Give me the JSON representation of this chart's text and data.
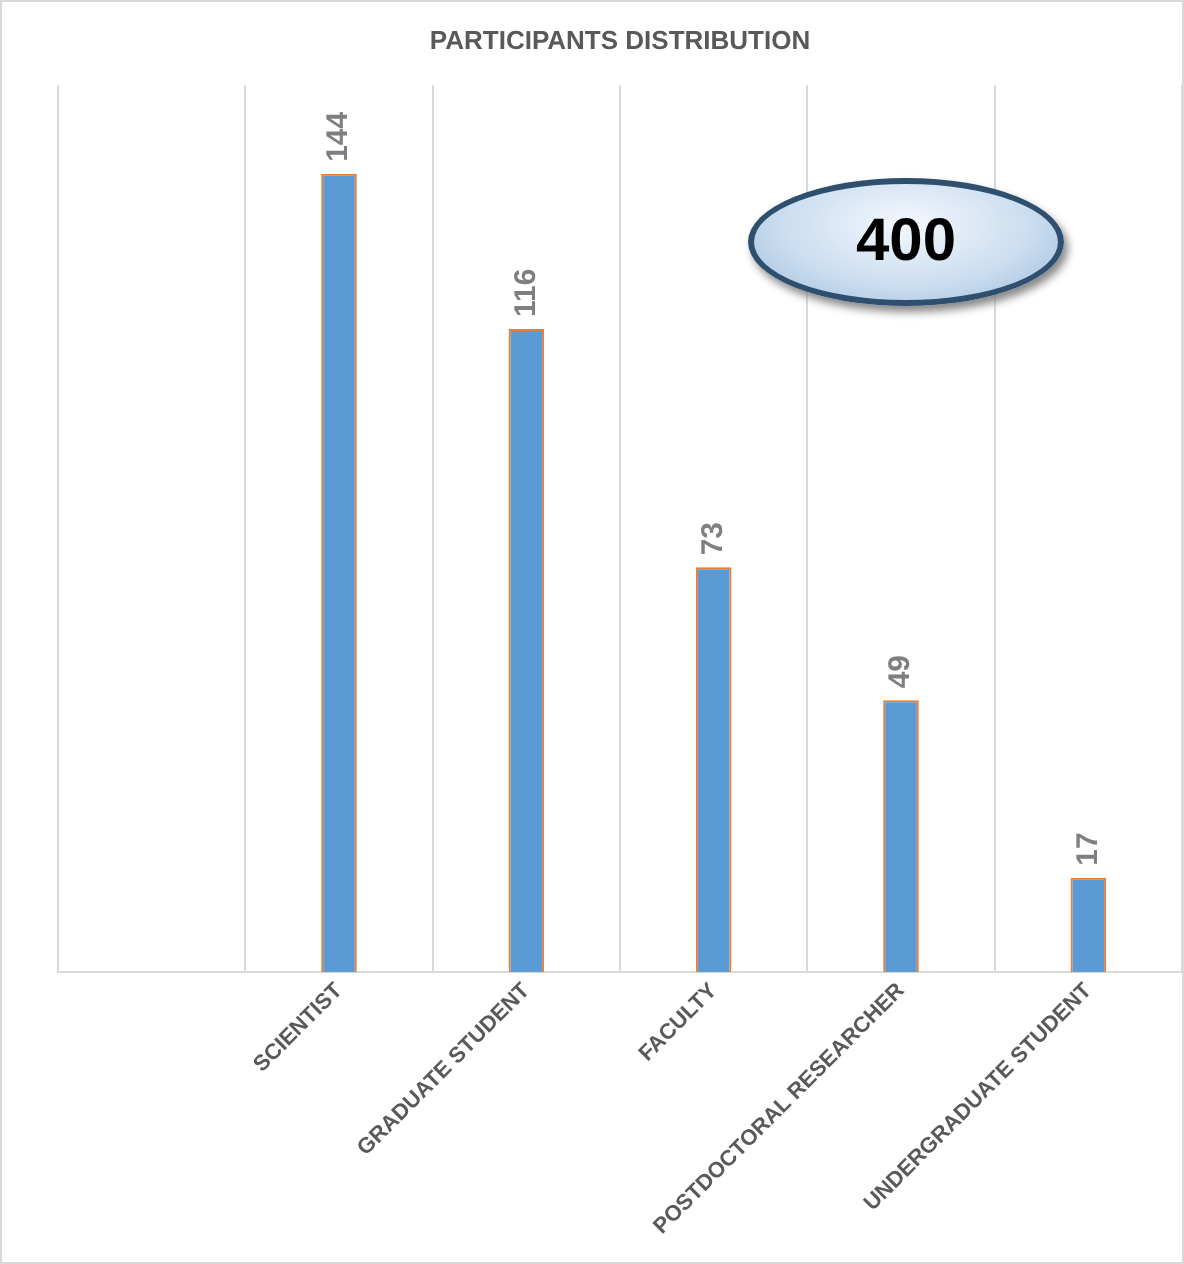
{
  "chart_data": {
    "type": "bar",
    "title": "PARTICIPANTS DISTRIBUTION",
    "categories": [
      null,
      "SCIENTIST",
      "GRADUATE STUDENT",
      "FACULTY",
      "POSTDOCTORAL RESEARCHER",
      "UNDERGRADUATE STUDENT"
    ],
    "values": [
      null,
      144,
      116,
      73,
      49,
      17
    ],
    "color": "#5b9bd5",
    "data_labels": true,
    "grid": "x",
    "legend": false,
    "annotations": [
      "400"
    ]
  }
}
